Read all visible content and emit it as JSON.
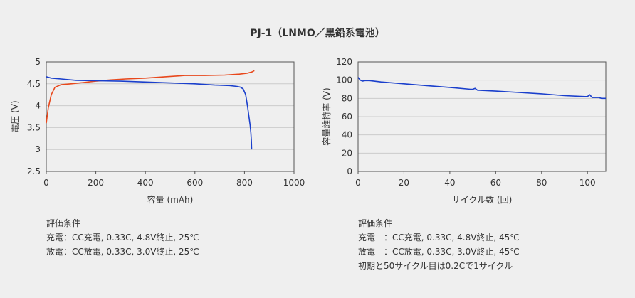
{
  "title": "PJ-1（LNMO／黒鉛系電池）",
  "colors": {
    "background": "#efefef",
    "charge": "#e8481c",
    "discharge": "#1a3fcc",
    "grid": "#cccccc",
    "frame": "#555555"
  },
  "conditions": [
    {
      "heading": "評価条件",
      "lines": [
        "充電：CC充電, 0.33C, 4.8V終止, 25℃",
        "放電：CC放電, 0.33C, 3.0V終止, 25℃"
      ]
    },
    {
      "heading": "評価条件",
      "lines": [
        "充電　：CC充電, 0.33C, 4.8V終止, 45℃",
        "放電　：CC放電, 0.33C, 3.0V終止, 45℃",
        "初期と50サイクル目は0.2Cで1サイクル"
      ]
    }
  ],
  "chart_data": [
    {
      "type": "line",
      "xlabel": "容量 (mAh)",
      "ylabel": "電圧 (V)",
      "xlim": [
        0,
        1000
      ],
      "ylim": [
        2.5,
        5
      ],
      "xticks": [
        0,
        200,
        400,
        600,
        800,
        1000
      ],
      "yticks": [
        2.5,
        3,
        3.5,
        4,
        4.5,
        5
      ],
      "ytick_labels": [
        "2.5",
        "3",
        "3.5",
        "4",
        "4.5",
        "5"
      ],
      "grid": "horizontal",
      "series": [
        {
          "color": "#e8481c",
          "x": [
            0,
            8,
            20,
            35,
            60,
            100,
            150,
            200,
            260,
            320,
            400,
            480,
            560,
            640,
            720,
            780,
            810,
            830,
            840
          ],
          "y": [
            3.6,
            3.95,
            4.25,
            4.42,
            4.48,
            4.5,
            4.53,
            4.56,
            4.59,
            4.61,
            4.63,
            4.66,
            4.69,
            4.69,
            4.7,
            4.72,
            4.74,
            4.77,
            4.8
          ]
        },
        {
          "color": "#1a3fcc",
          "x": [
            0,
            20,
            60,
            120,
            200,
            300,
            400,
            500,
            600,
            680,
            740,
            770,
            785,
            795,
            805,
            812,
            818,
            823,
            826,
            828,
            829
          ],
          "y": [
            4.66,
            4.63,
            4.61,
            4.58,
            4.57,
            4.56,
            4.54,
            4.52,
            4.5,
            4.47,
            4.46,
            4.44,
            4.42,
            4.38,
            4.25,
            4.0,
            3.75,
            3.55,
            3.38,
            3.2,
            3.0
          ]
        }
      ]
    },
    {
      "type": "line",
      "xlabel": "サイクル数 (回)",
      "ylabel": "容量維持率 (V)",
      "xlim": [
        0,
        108
      ],
      "ylim": [
        0,
        120
      ],
      "xticks": [
        0,
        20,
        40,
        60,
        80,
        100
      ],
      "yticks": [
        0,
        20,
        40,
        60,
        80,
        100,
        120
      ],
      "ytick_labels": [
        "0",
        "20",
        "40",
        "60",
        "80",
        "100",
        "120"
      ],
      "grid": "horizontal",
      "series": [
        {
          "color": "#1a3fcc",
          "x": [
            0,
            1,
            2,
            3,
            5,
            10,
            20,
            30,
            40,
            49,
            50,
            51,
            52,
            60,
            70,
            80,
            90,
            99,
            100,
            101,
            102,
            105,
            106,
            108
          ],
          "y": [
            103,
            100,
            99,
            99.5,
            99.5,
            98,
            96,
            94,
            92,
            90,
            90,
            91,
            89,
            88,
            86.5,
            85,
            83,
            82,
            82,
            84,
            81,
            81,
            80,
            80
          ]
        }
      ]
    }
  ]
}
